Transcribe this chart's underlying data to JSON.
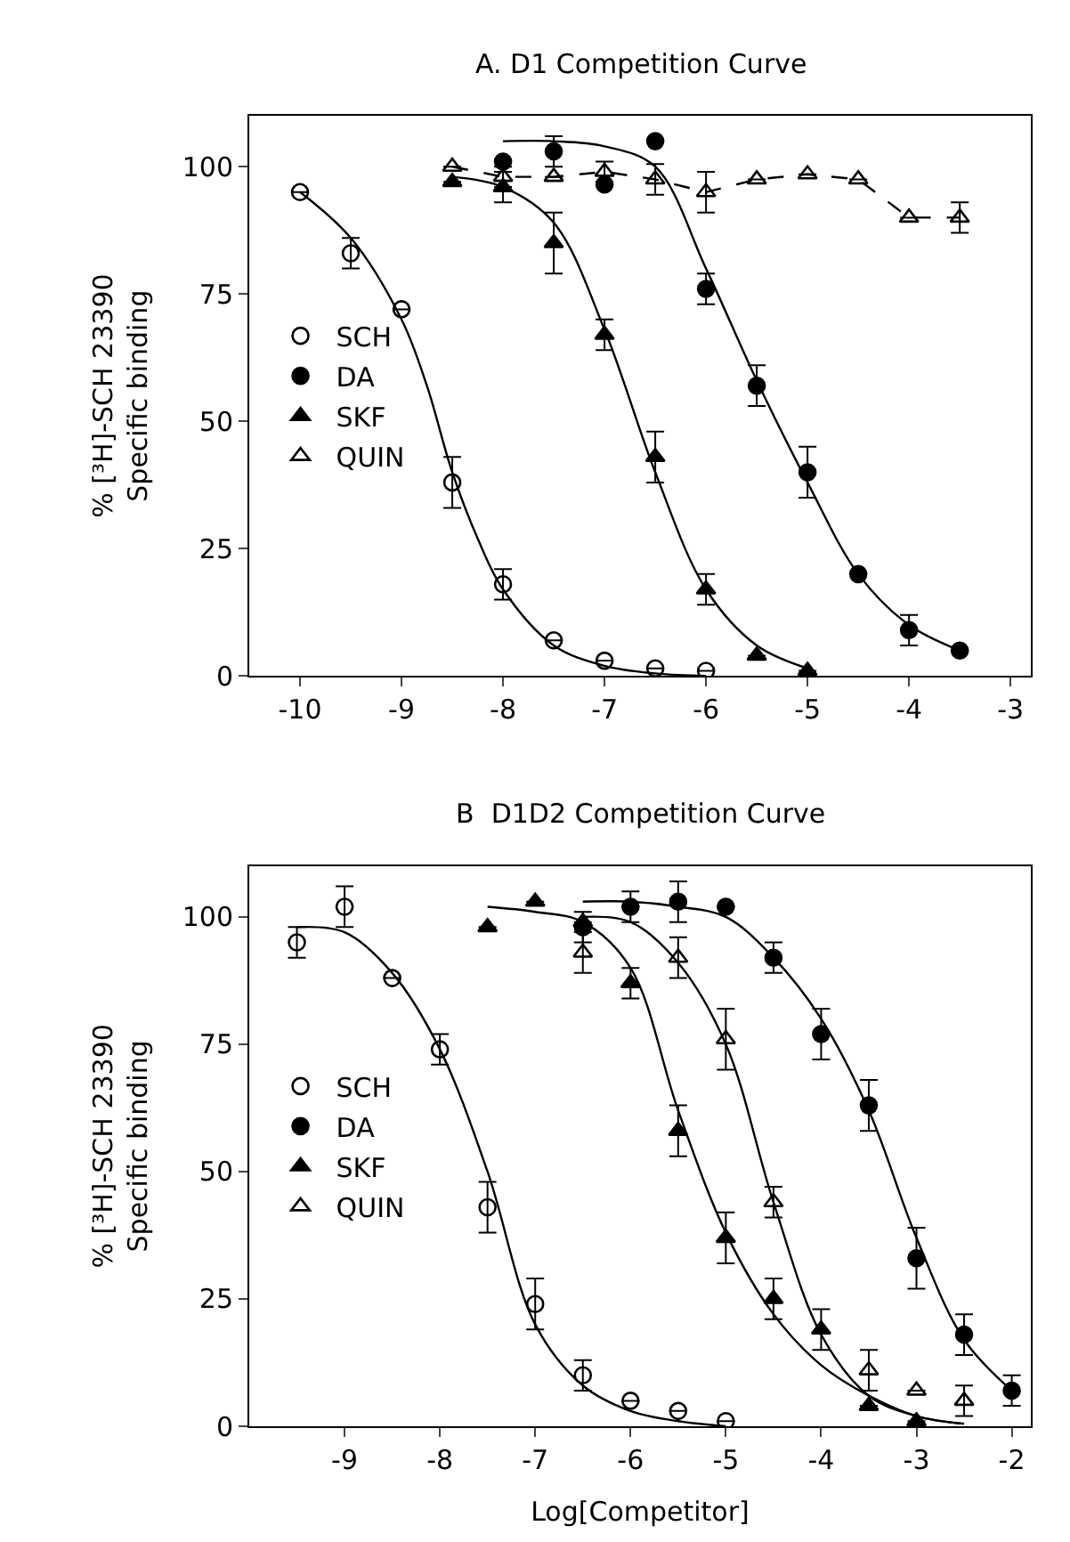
{
  "chart_data": [
    {
      "type": "scatter",
      "title": "A. D1 Competition Curve",
      "ylabel": "% [³H]-SCH 23390\nSpecific binding",
      "xlim": [
        -10.5,
        -2.8
      ],
      "xticks": [
        -10,
        -9,
        -8,
        -7,
        -6,
        -5,
        -4,
        -3
      ],
      "ylim": [
        0,
        110
      ],
      "yticks": [
        0,
        25,
        50,
        75,
        100
      ],
      "legend": "left",
      "series": [
        {
          "name": "SCH",
          "color": "#000000",
          "marker": "circle-open",
          "x": [
            -10,
            -9.5,
            -9,
            -8.5,
            -8,
            -7.5,
            -7,
            -6.5,
            -6
          ],
          "values": [
            95,
            83,
            72,
            38,
            18,
            7,
            3,
            1.5,
            1
          ],
          "errors": [
            null,
            3,
            null,
            5,
            3,
            null,
            null,
            null,
            null
          ]
        },
        {
          "name": "DA",
          "color": "#000000",
          "marker": "circle",
          "x": [
            -8,
            -7.5,
            -7,
            -6.5,
            -6,
            -5.5,
            -5,
            -4.5,
            -4,
            -3.5
          ],
          "values": [
            101,
            103,
            96.5,
            105,
            76,
            57,
            40,
            20,
            9,
            5
          ],
          "errors": [
            null,
            3,
            null,
            null,
            3,
            4,
            5,
            null,
            3,
            null
          ]
        },
        {
          "name": "SKF",
          "color": "#000000",
          "marker": "triangle",
          "x": [
            -8.5,
            -8,
            -7.5,
            -7,
            -6.5,
            -6,
            -5.5,
            -5
          ],
          "values": [
            97,
            96,
            85,
            67,
            43,
            17,
            4,
            1
          ],
          "errors": [
            null,
            3,
            6,
            3,
            5,
            3,
            null,
            null
          ]
        },
        {
          "name": "QUIN",
          "color": "#000000",
          "marker": "triangle-open",
          "x": [
            -8.5,
            -8,
            -7.5,
            -7,
            -6.5,
            -6,
            -5.5,
            -5,
            -4.5,
            -4,
            -3.5
          ],
          "values": [
            100,
            98,
            98,
            99,
            97.5,
            95,
            97.5,
            98.5,
            97.5,
            90,
            90
          ],
          "errors": [
            null,
            2,
            null,
            2,
            3,
            4,
            null,
            null,
            null,
            null,
            3
          ]
        },
        {
          "type": "line",
          "color": "#000000",
          "marker": "none",
          "line_style": "dashed",
          "x": [
            -8.5,
            -8,
            -7.5,
            -7,
            -6.5,
            -6,
            -5.5,
            -5,
            -4.5,
            -4,
            -3.5
          ],
          "values": [
            100,
            98,
            98,
            99,
            97.5,
            95,
            97.5,
            98.5,
            97.5,
            90,
            90
          ]
        },
        {
          "type": "line",
          "color": "#000000",
          "marker": "none",
          "x": [
            -10,
            -9.5,
            -9,
            -8.75,
            -8.5,
            -8.25,
            -8,
            -7.5,
            -7,
            -6.5,
            -6
          ],
          "values": [
            95,
            86,
            70,
            57,
            40,
            27,
            17,
            6,
            2,
            0.5,
            0
          ]
        },
        {
          "type": "line",
          "color": "#000000",
          "marker": "none",
          "x": [
            -8,
            -7.5,
            -7,
            -6.5,
            -6,
            -5.5,
            -5,
            -4.5,
            -4,
            -3.5
          ],
          "values": [
            105,
            105,
            104,
            100,
            80,
            58,
            38,
            20,
            10,
            5
          ]
        },
        {
          "type": "line",
          "color": "#000000",
          "marker": "none",
          "x": [
            -8.5,
            -8,
            -7.5,
            -7,
            -6.5,
            -6,
            -5.5,
            -5
          ],
          "values": [
            98,
            96,
            89,
            68,
            40,
            17,
            6,
            1.5
          ]
        }
      ]
    },
    {
      "type": "scatter",
      "title": "B  D1D2 Competition Curve",
      "xlabel": "Log[Competitor]",
      "ylabel": "% [³H]-SCH 23390\nSpecific binding",
      "xlim": [
        -10,
        -1.8
      ],
      "xticks": [
        -9,
        -8,
        -7,
        -6,
        -5,
        -4,
        -3,
        -2
      ],
      "ylim": [
        0,
        110
      ],
      "yticks": [
        0,
        25,
        50,
        75,
        100
      ],
      "legend": "left",
      "series": [
        {
          "name": "SCH",
          "color": "#000000",
          "marker": "circle-open",
          "x": [
            -9.5,
            -9,
            -8.5,
            -8,
            -7.5,
            -7,
            -6.5,
            -6,
            -5.5,
            -5
          ],
          "values": [
            95,
            102,
            88,
            74,
            43,
            24,
            10,
            5,
            3,
            1
          ],
          "errors": [
            3,
            4,
            null,
            3,
            5,
            5,
            3,
            null,
            null,
            null
          ]
        },
        {
          "name": "DA",
          "color": "#000000",
          "marker": "circle",
          "x": [
            -6.5,
            -6,
            -5.5,
            -5,
            -4.5,
            -4,
            -3.5,
            -3,
            -2.5,
            -2
          ],
          "values": [
            98,
            102,
            103,
            102,
            92,
            77,
            63,
            33,
            18,
            7
          ],
          "errors": [
            3,
            3,
            4,
            null,
            3,
            5,
            5,
            6,
            4,
            3
          ]
        },
        {
          "name": "SKF",
          "color": "#000000",
          "marker": "triangle",
          "x": [
            -7.5,
            -7,
            -6.5,
            -6,
            -5.5,
            -5,
            -4.5,
            -4,
            -3.5,
            -3
          ],
          "values": [
            98,
            103,
            99,
            87,
            58,
            37,
            25,
            19,
            4,
            1
          ],
          "errors": [
            null,
            null,
            null,
            3,
            5,
            5,
            4,
            4,
            null,
            null
          ]
        },
        {
          "name": "QUIN",
          "color": "#000000",
          "marker": "triangle-open",
          "x": [
            -6.5,
            -5.5,
            -5,
            -4.5,
            -3.5,
            -3,
            -2.5
          ],
          "values": [
            93,
            92,
            76,
            44,
            11,
            7,
            5
          ],
          "errors": [
            4,
            4,
            6,
            3,
            4,
            null,
            3
          ]
        },
        {
          "type": "line",
          "color": "#000000",
          "marker": "none",
          "x": [
            -9.5,
            -9,
            -8.5,
            -8,
            -7.5,
            -7,
            -6.5,
            -6,
            -5.5,
            -5
          ],
          "values": [
            98,
            97,
            89,
            74,
            50,
            20,
            8,
            3,
            1,
            0
          ]
        },
        {
          "type": "line",
          "color": "#000000",
          "marker": "none",
          "x": [
            -6.5,
            -6,
            -5.5,
            -5,
            -4.5,
            -4,
            -3.5,
            -3,
            -2.5,
            -2
          ],
          "values": [
            103,
            103,
            102,
            100,
            92,
            80,
            62,
            37,
            17,
            7
          ]
        },
        {
          "type": "line",
          "color": "#000000",
          "marker": "none",
          "x": [
            -7.5,
            -7,
            -6.5,
            -6,
            -5.5,
            -5,
            -4.5,
            -4,
            -3.5,
            -3,
            -2.5
          ],
          "values": [
            102,
            101,
            99,
            90,
            62,
            38,
            22,
            12,
            6,
            2,
            0.5
          ]
        },
        {
          "type": "line",
          "color": "#000000",
          "marker": "none",
          "x": [
            -6.5,
            -6,
            -5.5,
            -5,
            -4.5,
            -4,
            -3.5,
            -3,
            -2.5
          ],
          "values": [
            100,
            99,
            91,
            75,
            44,
            18,
            6,
            2,
            0.5
          ]
        }
      ]
    }
  ]
}
